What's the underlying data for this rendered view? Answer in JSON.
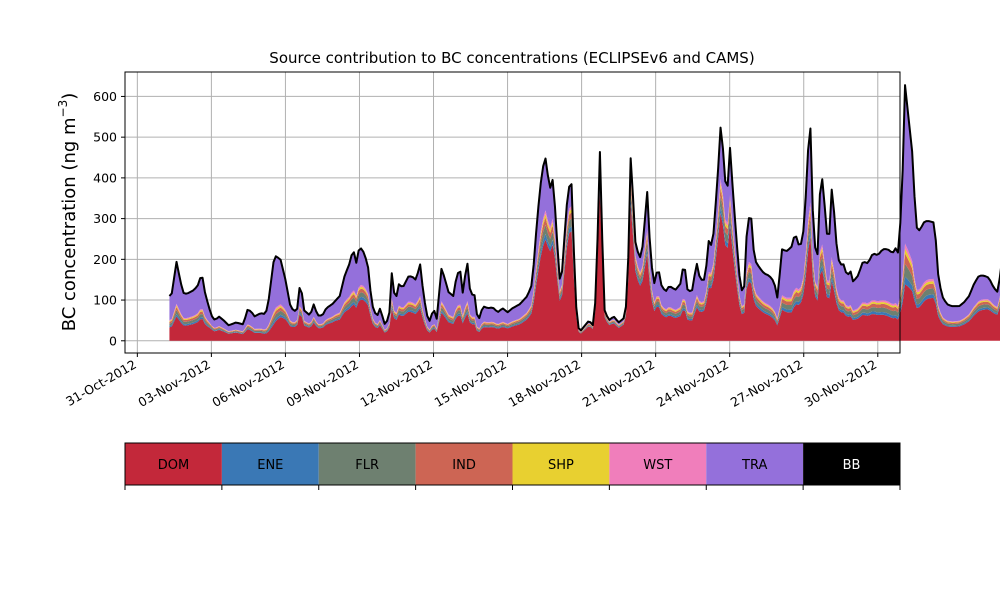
{
  "chart_data": {
    "type": "area",
    "title": "Source contribution to BC concentrations (ECLIPSEv6 and CAMS)",
    "ylabel": "BC concentration (ng m⁻³)",
    "ylabel_main": "BC concentration (ng m",
    "ylabel_sup": "−3",
    "ylabel_close": ")",
    "xlabel": "",
    "ylim": [
      -30,
      660
    ],
    "yticks": [
      0,
      100,
      200,
      300,
      400,
      500,
      600
    ],
    "ytick_labels": [
      "0",
      "100",
      "200",
      "300",
      "400",
      "500",
      "600"
    ],
    "xlim_days": [
      0.5,
      31.9
    ],
    "xticks_days": [
      1,
      4,
      7,
      10,
      13,
      16,
      19,
      22,
      25,
      28,
      31
    ],
    "xtick_labels": [
      "31-Oct-2012",
      "03-Nov-2012",
      "06-Nov-2012",
      "09-Nov-2012",
      "12-Nov-2012",
      "15-Nov-2012",
      "18-Nov-2012",
      "21-Nov-2012",
      "24-Nov-2012",
      "27-Nov-2012",
      "30-Nov-2012"
    ],
    "x_dates": [
      "2012-11-02",
      "2012-11-03",
      "2012-11-04",
      "2012-11-05",
      "2012-11-06",
      "2012-11-07",
      "2012-11-08",
      "2012-11-09",
      "2012-11-10",
      "2012-11-11",
      "2012-11-12",
      "2012-11-13",
      "2012-11-14",
      "2012-11-15",
      "2012-11-16",
      "2012-11-17",
      "2012-11-18",
      "2012-11-19",
      "2012-11-20",
      "2012-11-21",
      "2012-11-22",
      "2012-11-23",
      "2012-11-24",
      "2012-11-25",
      "2012-11-26",
      "2012-11-27",
      "2012-11-28",
      "2012-11-29",
      "2012-11-30",
      "2012-12-01",
      "2012-12-02"
    ],
    "grid": true,
    "total_series_keyframes": [
      [
        2.3,
        110
      ],
      [
        2.45,
        120
      ],
      [
        2.55,
        205
      ],
      [
        2.7,
        160
      ],
      [
        2.85,
        118
      ],
      [
        3.0,
        115
      ],
      [
        3.3,
        125
      ],
      [
        3.5,
        140
      ],
      [
        3.6,
        170
      ],
      [
        3.75,
        115
      ],
      [
        4.0,
        62
      ],
      [
        4.15,
        50
      ],
      [
        4.3,
        60
      ],
      [
        4.5,
        50
      ],
      [
        4.7,
        38
      ],
      [
        5.0,
        45
      ],
      [
        5.3,
        40
      ],
      [
        5.45,
        76
      ],
      [
        5.6,
        73
      ],
      [
        5.75,
        60
      ],
      [
        6.0,
        68
      ],
      [
        6.2,
        65
      ],
      [
        6.35,
        110
      ],
      [
        6.5,
        190
      ],
      [
        6.6,
        208
      ],
      [
        6.8,
        200
      ],
      [
        7.0,
        150
      ],
      [
        7.2,
        85
      ],
      [
        7.35,
        72
      ],
      [
        7.5,
        80
      ],
      [
        7.6,
        150
      ],
      [
        7.75,
        75
      ],
      [
        8.0,
        62
      ],
      [
        8.15,
        90
      ],
      [
        8.3,
        62
      ],
      [
        8.5,
        62
      ],
      [
        8.65,
        80
      ],
      [
        8.9,
        90
      ],
      [
        9.2,
        110
      ],
      [
        9.4,
        160
      ],
      [
        9.6,
        190
      ],
      [
        9.75,
        228
      ],
      [
        9.85,
        185
      ],
      [
        10.0,
        232
      ],
      [
        10.2,
        215
      ],
      [
        10.35,
        180
      ],
      [
        10.5,
        90
      ],
      [
        10.7,
        58
      ],
      [
        10.85,
        82
      ],
      [
        11.0,
        40
      ],
      [
        11.2,
        55
      ],
      [
        11.3,
        170
      ],
      [
        11.45,
        95
      ],
      [
        11.6,
        140
      ],
      [
        11.75,
        130
      ],
      [
        12.0,
        160
      ],
      [
        12.2,
        155
      ],
      [
        12.3,
        148
      ],
      [
        12.45,
        192
      ],
      [
        12.6,
        110
      ],
      [
        12.75,
        60
      ],
      [
        12.85,
        48
      ],
      [
        13.0,
        80
      ],
      [
        13.15,
        50
      ],
      [
        13.3,
        180
      ],
      [
        13.45,
        155
      ],
      [
        13.6,
        120
      ],
      [
        13.8,
        110
      ],
      [
        13.95,
        165
      ],
      [
        14.1,
        170
      ],
      [
        14.2,
        108
      ],
      [
        14.35,
        205
      ],
      [
        14.5,
        110
      ],
      [
        14.65,
        118
      ],
      [
        14.8,
        45
      ],
      [
        15.0,
        85
      ],
      [
        15.2,
        80
      ],
      [
        15.4,
        82
      ],
      [
        15.6,
        70
      ],
      [
        15.8,
        80
      ],
      [
        16.0,
        70
      ],
      [
        16.2,
        80
      ],
      [
        16.5,
        90
      ],
      [
        16.8,
        110
      ],
      [
        17.0,
        140
      ],
      [
        17.2,
        300
      ],
      [
        17.4,
        420
      ],
      [
        17.55,
        450
      ],
      [
        17.7,
        370
      ],
      [
        17.85,
        400
      ],
      [
        18.0,
        250
      ],
      [
        18.15,
        120
      ],
      [
        18.3,
        250
      ],
      [
        18.45,
        375
      ],
      [
        18.6,
        385
      ],
      [
        18.75,
        100
      ],
      [
        18.9,
        20
      ],
      [
        19.1,
        35
      ],
      [
        19.3,
        50
      ],
      [
        19.5,
        35
      ],
      [
        19.6,
        150
      ],
      [
        19.75,
        482
      ],
      [
        19.9,
        80
      ],
      [
        20.1,
        50
      ],
      [
        20.3,
        60
      ],
      [
        20.5,
        45
      ],
      [
        20.7,
        55
      ],
      [
        20.85,
        100
      ],
      [
        21.0,
        480
      ],
      [
        21.15,
        250
      ],
      [
        21.35,
        200
      ],
      [
        21.5,
        240
      ],
      [
        21.65,
        375
      ],
      [
        21.8,
        200
      ],
      [
        21.95,
        140
      ],
      [
        22.1,
        185
      ],
      [
        22.2,
        140
      ],
      [
        22.4,
        120
      ],
      [
        22.55,
        135
      ],
      [
        22.8,
        125
      ],
      [
        23.0,
        140
      ],
      [
        23.15,
        195
      ],
      [
        23.3,
        120
      ],
      [
        23.5,
        125
      ],
      [
        23.65,
        195
      ],
      [
        23.8,
        150
      ],
      [
        24.0,
        150
      ],
      [
        24.15,
        245
      ],
      [
        24.3,
        230
      ],
      [
        24.5,
        390
      ],
      [
        24.65,
        545
      ],
      [
        24.8,
        400
      ],
      [
        24.9,
        360
      ],
      [
        25.0,
        485
      ],
      [
        25.15,
        350
      ],
      [
        25.3,
        230
      ],
      [
        25.45,
        120
      ],
      [
        25.6,
        135
      ],
      [
        25.7,
        280
      ],
      [
        25.85,
        320
      ],
      [
        26.0,
        200
      ],
      [
        26.2,
        180
      ],
      [
        26.4,
        165
      ],
      [
        26.6,
        160
      ],
      [
        26.8,
        145
      ],
      [
        26.95,
        100
      ],
      [
        27.1,
        225
      ],
      [
        27.3,
        220
      ],
      [
        27.5,
        230
      ],
      [
        27.65,
        265
      ],
      [
        27.8,
        235
      ],
      [
        27.95,
        240
      ],
      [
        28.1,
        370
      ],
      [
        28.25,
        565
      ],
      [
        28.4,
        250
      ],
      [
        28.55,
        200
      ],
      [
        28.7,
        430
      ],
      [
        28.85,
        330
      ],
      [
        29.0,
        220
      ],
      [
        29.15,
        390
      ],
      [
        29.3,
        250
      ],
      [
        29.45,
        185
      ],
      [
        29.6,
        190
      ],
      [
        29.75,
        160
      ],
      [
        29.9,
        170
      ],
      [
        30.0,
        145
      ],
      [
        30.2,
        160
      ],
      [
        30.4,
        195
      ],
      [
        30.6,
        190
      ],
      [
        30.8,
        215
      ],
      [
        31.0,
        210
      ],
      [
        31.2,
        225
      ],
      [
        31.4,
        225
      ],
      [
        31.6,
        215
      ],
      [
        31.75,
        230
      ],
      [
        31.85,
        210
      ],
      [
        32.0,
        400
      ],
      [
        32.1,
        630
      ],
      [
        32.25,
        545
      ],
      [
        32.4,
        460
      ],
      [
        32.55,
        280
      ],
      [
        32.7,
        270
      ],
      [
        32.85,
        290
      ],
      [
        33.0,
        295
      ],
      [
        33.3,
        290
      ],
      [
        33.45,
        160
      ],
      [
        33.6,
        110
      ],
      [
        33.8,
        90
      ],
      [
        34.0,
        85
      ],
      [
        34.3,
        85
      ],
      [
        34.5,
        95
      ],
      [
        34.7,
        110
      ],
      [
        34.9,
        140
      ],
      [
        35.1,
        160
      ],
      [
        35.3,
        160
      ],
      [
        35.5,
        155
      ],
      [
        35.7,
        130
      ],
      [
        35.85,
        120
      ],
      [
        36.0,
        175
      ],
      [
        36.2,
        320
      ],
      [
        36.35,
        220
      ],
      [
        36.5,
        200
      ],
      [
        36.7,
        205
      ],
      [
        36.8,
        150
      ]
    ],
    "dom_share_keyframes": [
      [
        2.3,
        0.3
      ],
      [
        3.8,
        0.35
      ],
      [
        4.0,
        0.45
      ],
      [
        5.0,
        0.45
      ],
      [
        6.5,
        0.2
      ],
      [
        7.5,
        0.5
      ],
      [
        9.0,
        0.5
      ],
      [
        9.7,
        0.4
      ],
      [
        10.5,
        0.5
      ],
      [
        12.0,
        0.45
      ],
      [
        13.0,
        0.4
      ],
      [
        14.5,
        0.35
      ],
      [
        15.0,
        0.4
      ],
      [
        16.5,
        0.45
      ],
      [
        17.5,
        0.55
      ],
      [
        18.5,
        0.7
      ],
      [
        19.0,
        0.7
      ],
      [
        19.75,
        0.8
      ],
      [
        20.5,
        0.7
      ],
      [
        21.0,
        0.75
      ],
      [
        22.0,
        0.5
      ],
      [
        23.5,
        0.4
      ],
      [
        24.5,
        0.6
      ],
      [
        25.0,
        0.6
      ],
      [
        26.0,
        0.45
      ],
      [
        27.5,
        0.3
      ],
      [
        28.3,
        0.5
      ],
      [
        29.0,
        0.4
      ],
      [
        31.0,
        0.3
      ],
      [
        32.1,
        0.22
      ],
      [
        33.0,
        0.35
      ],
      [
        34.0,
        0.4
      ],
      [
        35.0,
        0.45
      ],
      [
        36.8,
        0.62
      ]
    ],
    "series": [
      {
        "name": "DOM",
        "color": "#C3283A"
      },
      {
        "name": "ENE",
        "color": "#3A78B5"
      },
      {
        "name": "FLR",
        "color": "#6E8070"
      },
      {
        "name": "IND",
        "color": "#CD6554"
      },
      {
        "name": "SHP",
        "color": "#E8D030"
      },
      {
        "name": "WST",
        "color": "#F07EBB"
      },
      {
        "name": "TRA",
        "color": "#9470DB"
      },
      {
        "name": "BB",
        "color": "#000000"
      }
    ],
    "small_sources_share": {
      "ENE": 0.03,
      "FLR": 0.05,
      "IND": 0.04,
      "SHP": 0.02,
      "WST": 0.02
    },
    "legend_placement": "bottom",
    "legend_labels": [
      "DOM",
      "ENE",
      "FLR",
      "IND",
      "SHP",
      "WST",
      "TRA",
      "BB"
    ],
    "legend_text_colors": [
      "#000000",
      "#000000",
      "#000000",
      "#000000",
      "#000000",
      "#000000",
      "#000000",
      "#ffffff"
    ]
  }
}
